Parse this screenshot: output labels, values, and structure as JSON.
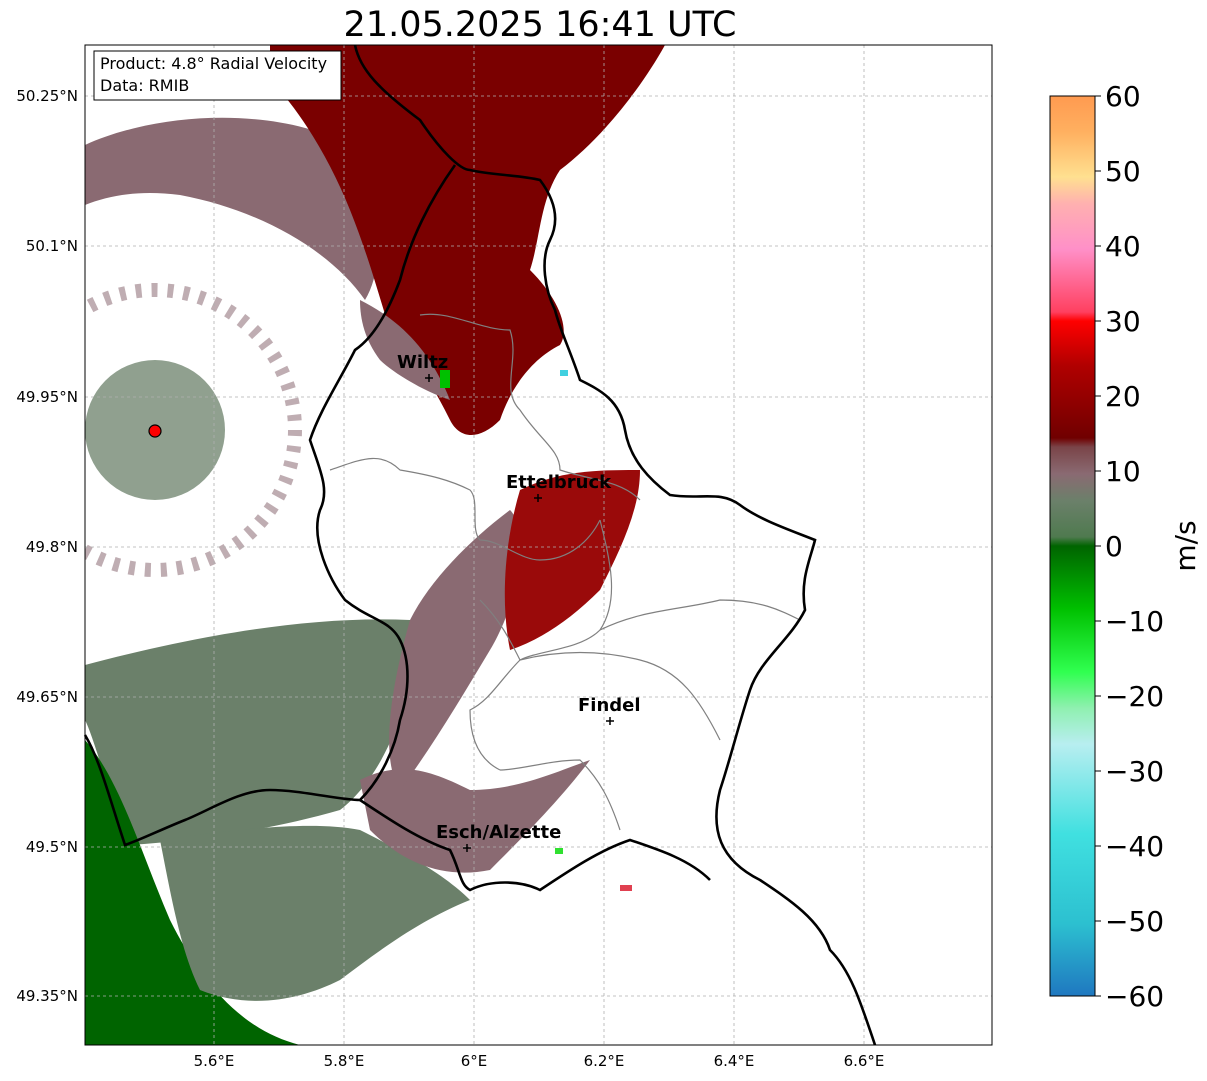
{
  "title": "21.05.2025 16:41 UTC",
  "info_box": {
    "line1": "Product: 4.8° Radial Velocity",
    "line2": "Data: RMIB"
  },
  "map": {
    "lon_ticks": [
      "5.6°E",
      "5.8°E",
      "6°E",
      "6.2°E",
      "6.4°E",
      "6.6°E"
    ],
    "lat_ticks": [
      "50.25°N",
      "50.1°N",
      "49.95°N",
      "49.8°N",
      "49.65°N",
      "49.5°N",
      "49.35°N"
    ],
    "cities": [
      {
        "name": "Wiltz"
      },
      {
        "name": "Ettelbruck"
      },
      {
        "name": "Findel"
      },
      {
        "name": "Esch/Alzette"
      }
    ],
    "radar_site_color": "#ff0000",
    "colors": {
      "outbound_dark": "#7a0000",
      "outbound_mid": "#9a0a0a",
      "near_zero_pos": "#8a6a72",
      "near_zero_neg": "#6b7f68",
      "inbound_dark": "#006400",
      "inbound_mid": "#2e7d2e"
    }
  },
  "colorbar": {
    "label": "m/s",
    "ticks": [
      "60",
      "50",
      "40",
      "30",
      "20",
      "10",
      "0",
      "−10",
      "−20",
      "−30",
      "−40",
      "−50",
      "−60"
    ],
    "range": [
      -60,
      60
    ]
  }
}
